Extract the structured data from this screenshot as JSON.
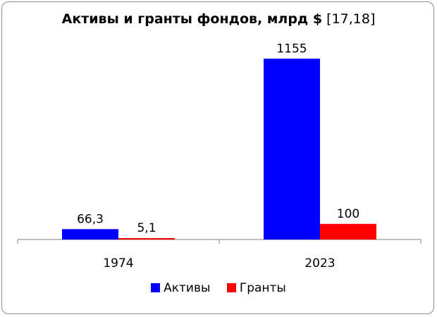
{
  "chart_data": {
    "type": "bar",
    "title": "Активы и гранты фондов, млрд $",
    "title_ref": "[17,18]",
    "categories": [
      "1974",
      "2023"
    ],
    "series": [
      {
        "name": "Активы",
        "values": [
          66.3,
          1155
        ],
        "labels": [
          "66,3",
          "1155"
        ],
        "color": "#0000ff"
      },
      {
        "name": "Гранты",
        "values": [
          5.1,
          100
        ],
        "labels": [
          "5,1",
          "100"
        ],
        "color": "#ff0000"
      }
    ],
    "ylim": [
      0,
      1350
    ],
    "grid": false,
    "legend_position": "bottom"
  }
}
